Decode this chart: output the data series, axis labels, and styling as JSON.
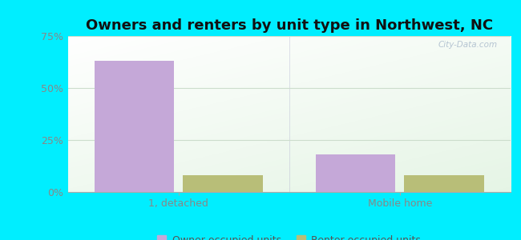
{
  "title": "Owners and renters by unit type in Northwest, NC",
  "categories": [
    "1, detached",
    "Mobile home"
  ],
  "owner_values": [
    63.0,
    18.0
  ],
  "renter_values": [
    8.0,
    8.0
  ],
  "owner_color": "#c5a8d8",
  "renter_color": "#b8be78",
  "ylim": [
    0,
    75
  ],
  "yticks": [
    0,
    25,
    50,
    75
  ],
  "yticklabels": [
    "0%",
    "25%",
    "50%",
    "75%"
  ],
  "bar_width": 0.18,
  "x_positions": [
    0.25,
    0.75
  ],
  "xlim": [
    0.0,
    1.0
  ],
  "legend_owner": "Owner occupied units",
  "legend_renter": "Renter occupied units",
  "outer_bg": "#00eeff",
  "watermark": "City-Data.com",
  "title_fontsize": 13,
  "axis_fontsize": 9,
  "legend_fontsize": 9,
  "grid_color": "#ccddcc",
  "tick_color": "#888888"
}
